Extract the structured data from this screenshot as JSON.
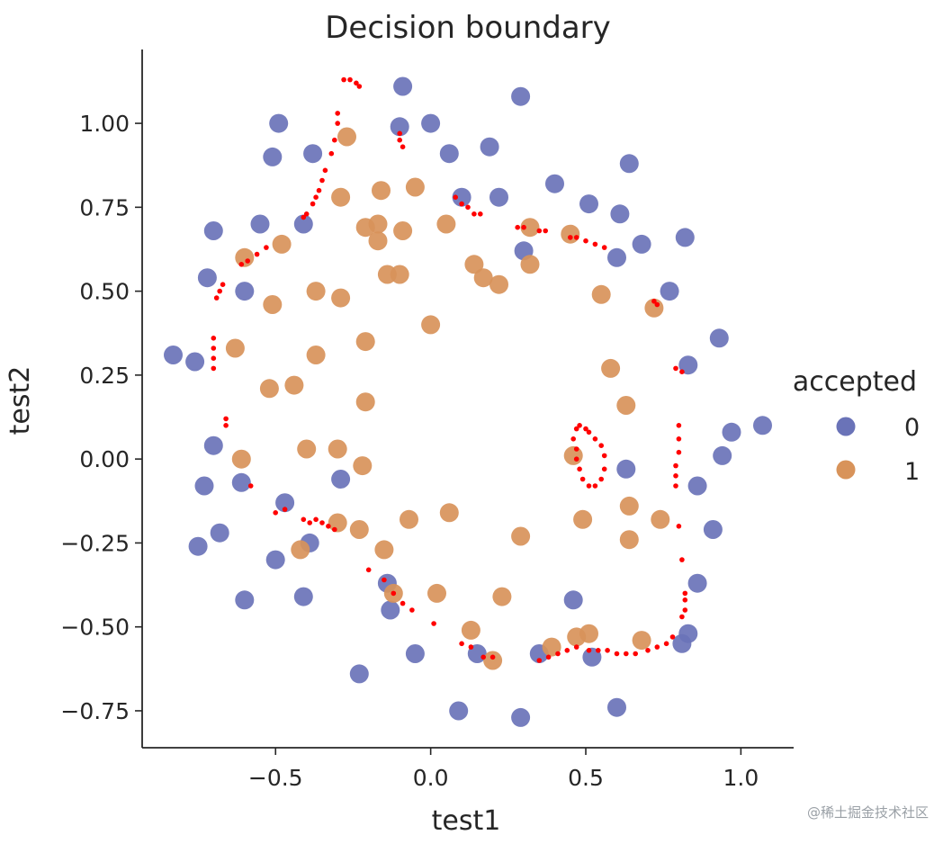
{
  "chart_data": {
    "type": "scatter",
    "title": "Decision boundary",
    "xlabel": "test1",
    "ylabel": "test2",
    "xlim": [
      -0.93,
      1.17
    ],
    "ylim": [
      -0.86,
      1.22
    ],
    "xticks": [
      -0.5,
      0.0,
      0.5,
      1.0
    ],
    "xtick_labels": [
      "−0.5",
      "0.0",
      "0.5",
      "1.0"
    ],
    "yticks": [
      1.0,
      0.75,
      0.5,
      0.25,
      0.0,
      -0.25,
      -0.5,
      -0.75
    ],
    "ytick_labels": [
      "1.00",
      "0.75",
      "0.50",
      "0.25",
      "0.00",
      "−0.25",
      "−0.50",
      "−0.75"
    ],
    "grid": false,
    "legend": {
      "title": "accepted",
      "position": "right",
      "entries": [
        {
          "label": "0",
          "color": "#6a73b8"
        },
        {
          "label": "1",
          "color": "#d8935a"
        }
      ]
    },
    "series": [
      {
        "name": "0",
        "color": "#6a73b8",
        "points": [
          [
            -0.09,
            1.11
          ],
          [
            0.29,
            1.08
          ],
          [
            -0.49,
            1.0
          ],
          [
            -0.1,
            0.99
          ],
          [
            0.0,
            1.0
          ],
          [
            -0.38,
            0.91
          ],
          [
            -0.51,
            0.9
          ],
          [
            0.06,
            0.91
          ],
          [
            0.19,
            0.93
          ],
          [
            0.64,
            0.88
          ],
          [
            0.4,
            0.82
          ],
          [
            0.1,
            0.78
          ],
          [
            0.22,
            0.78
          ],
          [
            0.51,
            0.76
          ],
          [
            0.61,
            0.73
          ],
          [
            -0.41,
            0.7
          ],
          [
            -0.55,
            0.7
          ],
          [
            -0.7,
            0.68
          ],
          [
            0.82,
            0.66
          ],
          [
            0.68,
            0.64
          ],
          [
            0.6,
            0.6
          ],
          [
            0.3,
            0.62
          ],
          [
            -0.72,
            0.54
          ],
          [
            -0.6,
            0.5
          ],
          [
            0.77,
            0.5
          ],
          [
            0.93,
            0.36
          ],
          [
            -0.83,
            0.31
          ],
          [
            -0.76,
            0.29
          ],
          [
            0.83,
            0.28
          ],
          [
            1.07,
            0.1
          ],
          [
            0.97,
            0.08
          ],
          [
            0.94,
            0.01
          ],
          [
            -0.7,
            0.04
          ],
          [
            0.63,
            -0.03
          ],
          [
            0.86,
            -0.08
          ],
          [
            -0.73,
            -0.08
          ],
          [
            -0.61,
            -0.07
          ],
          [
            -0.29,
            -0.06
          ],
          [
            -0.47,
            -0.13
          ],
          [
            0.91,
            -0.21
          ],
          [
            -0.75,
            -0.26
          ],
          [
            -0.68,
            -0.22
          ],
          [
            -0.39,
            -0.25
          ],
          [
            -0.5,
            -0.3
          ],
          [
            -0.14,
            -0.37
          ],
          [
            -0.41,
            -0.41
          ],
          [
            -0.6,
            -0.42
          ],
          [
            0.46,
            -0.42
          ],
          [
            0.86,
            -0.37
          ],
          [
            -0.13,
            -0.45
          ],
          [
            0.83,
            -0.52
          ],
          [
            0.81,
            -0.55
          ],
          [
            -0.05,
            -0.58
          ],
          [
            0.15,
            -0.58
          ],
          [
            0.35,
            -0.58
          ],
          [
            0.52,
            -0.59
          ],
          [
            -0.23,
            -0.64
          ],
          [
            0.09,
            -0.75
          ],
          [
            0.29,
            -0.77
          ],
          [
            0.6,
            -0.74
          ]
        ]
      },
      {
        "name": "1",
        "color": "#d8935a",
        "points": [
          [
            -0.27,
            0.96
          ],
          [
            -0.29,
            0.78
          ],
          [
            -0.16,
            0.8
          ],
          [
            -0.05,
            0.81
          ],
          [
            0.05,
            0.7
          ],
          [
            -0.17,
            0.7
          ],
          [
            -0.21,
            0.69
          ],
          [
            -0.09,
            0.68
          ],
          [
            -0.17,
            0.65
          ],
          [
            -0.48,
            0.64
          ],
          [
            -0.6,
            0.6
          ],
          [
            0.32,
            0.69
          ],
          [
            0.45,
            0.67
          ],
          [
            0.14,
            0.58
          ],
          [
            0.32,
            0.58
          ],
          [
            -0.14,
            0.55
          ],
          [
            -0.1,
            0.55
          ],
          [
            0.17,
            0.54
          ],
          [
            0.22,
            0.52
          ],
          [
            -0.37,
            0.5
          ],
          [
            0.55,
            0.49
          ],
          [
            -0.29,
            0.48
          ],
          [
            -0.51,
            0.46
          ],
          [
            0.72,
            0.45
          ],
          [
            0.0,
            0.4
          ],
          [
            -0.21,
            0.35
          ],
          [
            -0.63,
            0.33
          ],
          [
            -0.37,
            0.31
          ],
          [
            0.58,
            0.27
          ],
          [
            -0.52,
            0.21
          ],
          [
            -0.44,
            0.22
          ],
          [
            -0.21,
            0.17
          ],
          [
            0.63,
            0.16
          ],
          [
            -0.4,
            0.03
          ],
          [
            -0.3,
            0.03
          ],
          [
            -0.61,
            0.0
          ],
          [
            -0.22,
            -0.02
          ],
          [
            0.46,
            0.01
          ],
          [
            0.64,
            -0.14
          ],
          [
            0.06,
            -0.16
          ],
          [
            -0.07,
            -0.18
          ],
          [
            -0.3,
            -0.19
          ],
          [
            -0.23,
            -0.21
          ],
          [
            0.49,
            -0.18
          ],
          [
            0.74,
            -0.18
          ],
          [
            -0.42,
            -0.27
          ],
          [
            -0.15,
            -0.27
          ],
          [
            0.29,
            -0.23
          ],
          [
            0.64,
            -0.24
          ],
          [
            -0.12,
            -0.4
          ],
          [
            0.02,
            -0.4
          ],
          [
            0.23,
            -0.41
          ],
          [
            0.13,
            -0.51
          ],
          [
            0.51,
            -0.52
          ],
          [
            0.47,
            -0.53
          ],
          [
            0.68,
            -0.54
          ],
          [
            0.39,
            -0.56
          ],
          [
            0.2,
            -0.6
          ]
        ]
      },
      {
        "name": "boundary",
        "color": "#ff0000",
        "points": [
          [
            -0.28,
            1.13
          ],
          [
            -0.26,
            1.13
          ],
          [
            -0.24,
            1.12
          ],
          [
            -0.23,
            1.11
          ],
          [
            -0.3,
            1.03
          ],
          [
            -0.3,
            1.0
          ],
          [
            -0.31,
            0.95
          ],
          [
            -0.32,
            0.91
          ],
          [
            -0.34,
            0.86
          ],
          [
            -0.35,
            0.83
          ],
          [
            -0.36,
            0.8
          ],
          [
            -0.37,
            0.78
          ],
          [
            -0.38,
            0.76
          ],
          [
            -0.4,
            0.73
          ],
          [
            -0.41,
            0.72
          ],
          [
            -0.1,
            0.97
          ],
          [
            -0.1,
            0.95
          ],
          [
            -0.09,
            0.93
          ],
          [
            0.08,
            0.78
          ],
          [
            0.1,
            0.76
          ],
          [
            0.12,
            0.75
          ],
          [
            0.14,
            0.73
          ],
          [
            0.16,
            0.73
          ],
          [
            0.28,
            0.69
          ],
          [
            0.3,
            0.69
          ],
          [
            0.35,
            0.68
          ],
          [
            0.37,
            0.68
          ],
          [
            0.45,
            0.66
          ],
          [
            0.47,
            0.66
          ],
          [
            0.5,
            0.65
          ],
          [
            0.53,
            0.64
          ],
          [
            0.56,
            0.63
          ],
          [
            -0.53,
            0.63
          ],
          [
            -0.56,
            0.61
          ],
          [
            -0.59,
            0.59
          ],
          [
            -0.61,
            0.58
          ],
          [
            -0.67,
            0.52
          ],
          [
            -0.68,
            0.5
          ],
          [
            -0.69,
            0.48
          ],
          [
            0.72,
            0.47
          ],
          [
            0.73,
            0.46
          ],
          [
            -0.7,
            0.36
          ],
          [
            -0.7,
            0.33
          ],
          [
            -0.7,
            0.3
          ],
          [
            -0.7,
            0.27
          ],
          [
            0.79,
            0.27
          ],
          [
            0.81,
            0.26
          ],
          [
            -0.66,
            0.12
          ],
          [
            -0.66,
            0.1
          ],
          [
            0.8,
            0.1
          ],
          [
            0.8,
            0.06
          ],
          [
            0.8,
            0.02
          ],
          [
            0.79,
            -0.02
          ],
          [
            0.79,
            -0.05
          ],
          [
            0.79,
            -0.08
          ],
          [
            0.8,
            -0.2
          ],
          [
            0.81,
            -0.3
          ],
          [
            0.82,
            -0.4
          ],
          [
            0.82,
            -0.42
          ],
          [
            0.82,
            -0.45
          ],
          [
            0.81,
            -0.47
          ],
          [
            0.78,
            -0.53
          ],
          [
            0.76,
            -0.55
          ],
          [
            0.73,
            -0.56
          ],
          [
            0.7,
            -0.57
          ],
          [
            0.66,
            -0.58
          ],
          [
            0.63,
            -0.58
          ],
          [
            0.6,
            -0.58
          ],
          [
            0.57,
            -0.57
          ],
          [
            0.54,
            -0.57
          ],
          [
            0.51,
            -0.57
          ],
          [
            0.47,
            -0.56
          ],
          [
            0.44,
            -0.57
          ],
          [
            0.41,
            -0.58
          ],
          [
            0.38,
            -0.59
          ],
          [
            0.35,
            -0.6
          ],
          [
            0.2,
            -0.59
          ],
          [
            0.17,
            -0.59
          ],
          [
            0.13,
            -0.56
          ],
          [
            0.1,
            -0.55
          ],
          [
            0.01,
            -0.49
          ],
          [
            -0.06,
            -0.45
          ],
          [
            -0.09,
            -0.43
          ],
          [
            -0.12,
            -0.4
          ],
          [
            -0.15,
            -0.36
          ],
          [
            -0.2,
            -0.33
          ],
          [
            -0.31,
            -0.21
          ],
          [
            -0.33,
            -0.2
          ],
          [
            -0.35,
            -0.19
          ],
          [
            -0.37,
            -0.18
          ],
          [
            -0.39,
            -0.19
          ],
          [
            -0.41,
            -0.18
          ],
          [
            -0.5,
            -0.16
          ],
          [
            -0.47,
            -0.15
          ],
          [
            -0.58,
            -0.08
          ],
          [
            0.48,
            0.1
          ],
          [
            0.5,
            0.09
          ],
          [
            0.51,
            0.08
          ],
          [
            0.53,
            0.06
          ],
          [
            0.55,
            0.04
          ],
          [
            0.56,
            0.01
          ],
          [
            0.56,
            -0.03
          ],
          [
            0.55,
            -0.06
          ],
          [
            0.53,
            -0.08
          ],
          [
            0.51,
            -0.08
          ],
          [
            0.49,
            -0.06
          ],
          [
            0.48,
            -0.03
          ],
          [
            0.47,
            0.0
          ],
          [
            0.47,
            0.03
          ],
          [
            0.46,
            0.06
          ],
          [
            0.47,
            0.09
          ]
        ]
      }
    ]
  },
  "watermark": "@稀土掘金技术社区"
}
